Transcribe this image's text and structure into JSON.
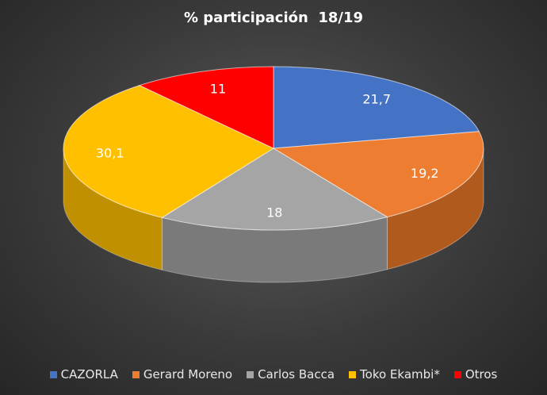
{
  "chart_data": {
    "type": "pie",
    "title": "% participación  18/19",
    "legend_position": "bottom",
    "categories": [
      "CAZORLA",
      "Gerard Moreno",
      "Carlos Bacca",
      "Toko Ekambi*",
      "Otros"
    ],
    "values": [
      21.7,
      19.2,
      18,
      30.1,
      11
    ],
    "value_labels": [
      "21,7",
      "19,2",
      "18",
      "30,1",
      "11"
    ],
    "colors": [
      "#4472C4",
      "#ED7D31",
      "#A5A5A5",
      "#FFC000",
      "#FF0000"
    ],
    "side_colors": [
      "#2F528F",
      "#B05A1E",
      "#7A7A7A",
      "#C09000",
      "#B00000"
    ]
  }
}
